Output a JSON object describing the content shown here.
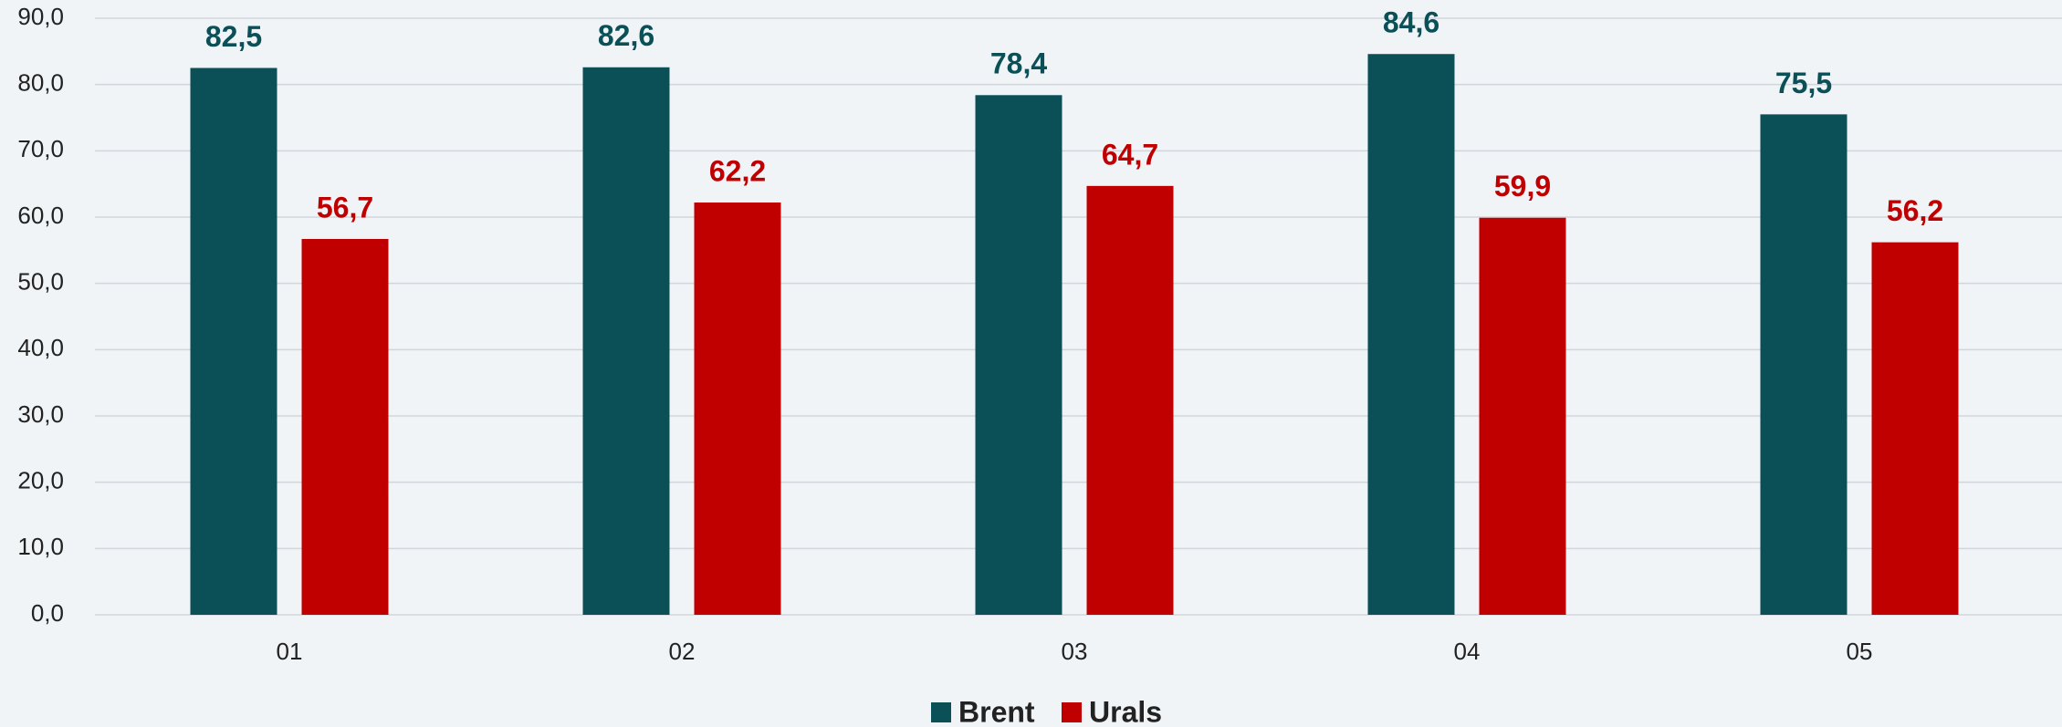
{
  "chart_data": {
    "type": "bar",
    "categories": [
      "01",
      "02",
      "03",
      "04",
      "05"
    ],
    "series": [
      {
        "name": "Brent",
        "color": "#0b4f57",
        "values": [
          82.5,
          82.6,
          78.4,
          84.6,
          75.5
        ],
        "value_labels": [
          "82,5",
          "82,6",
          "78,4",
          "84,6",
          "75,5"
        ]
      },
      {
        "name": "Urals",
        "color": "#c00000",
        "values": [
          56.7,
          62.2,
          64.7,
          59.9,
          56.2
        ],
        "value_labels": [
          "56,7",
          "62,2",
          "64,7",
          "59,9",
          "56,2"
        ]
      }
    ],
    "ylim": [
      0,
      90
    ],
    "yticks": [
      {
        "value": 0,
        "label": "0,0"
      },
      {
        "value": 10,
        "label": "10,0"
      },
      {
        "value": 20,
        "label": "20,0"
      },
      {
        "value": 30,
        "label": "30,0"
      },
      {
        "value": 40,
        "label": "40,0"
      },
      {
        "value": 50,
        "label": "50,0"
      },
      {
        "value": 60,
        "label": "60,0"
      },
      {
        "value": 70,
        "label": "70,0"
      },
      {
        "value": 80,
        "label": "80,0"
      },
      {
        "value": 90,
        "label": "90,0"
      }
    ],
    "grid": true,
    "legend": "bottom"
  }
}
